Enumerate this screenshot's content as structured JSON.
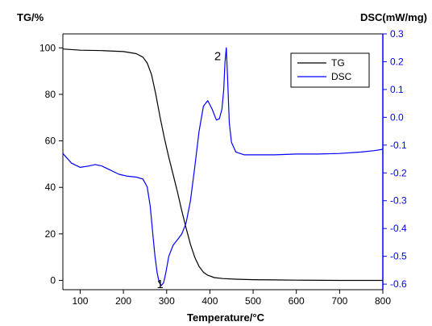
{
  "chart_data": {
    "type": "line",
    "xlabel": "Temperature/°C",
    "ylabel_left": "TG/%",
    "ylabel_right": "DSC(mW/mg)",
    "xlim": [
      60,
      800
    ],
    "ylim_left": [
      -4,
      106
    ],
    "ylim_right": [
      -0.62,
      0.3
    ],
    "x_ticks": [
      100,
      200,
      300,
      400,
      500,
      600,
      700,
      800
    ],
    "y_left_ticks": [
      0,
      20,
      40,
      60,
      80,
      100
    ],
    "y_right_ticks": [
      -0.6,
      -0.5,
      -0.4,
      -0.3,
      -0.2,
      -0.1,
      0.0,
      0.1,
      0.2,
      0.3
    ],
    "y_right_tick_labels": [
      "-0.6",
      "-0.5",
      "-0.4",
      "-0.3",
      "-0.2",
      "-0.1",
      "0.0",
      "0.1",
      "0.2",
      "0.3"
    ],
    "legend": {
      "position": "top-right"
    },
    "annotations": [
      {
        "text": "1",
        "x": 285,
        "axis": "right",
        "y": -0.6
      },
      {
        "text": "2",
        "x": 418,
        "axis": "right",
        "y": 0.22
      }
    ],
    "series": [
      {
        "name": "TG",
        "axis": "left",
        "color": "#000000",
        "x": [
          60,
          100,
          150,
          200,
          230,
          245,
          255,
          265,
          275,
          285,
          295,
          305,
          315,
          325,
          335,
          345,
          355,
          365,
          375,
          385,
          395,
          410,
          430,
          460,
          500,
          550,
          600,
          700,
          800
        ],
        "y": [
          99.5,
          99.0,
          98.8,
          98.4,
          97.5,
          96.0,
          93.5,
          88.5,
          80.0,
          70.0,
          61.0,
          53.0,
          45.5,
          38.0,
          30.0,
          22.5,
          15.5,
          10.0,
          6.0,
          3.5,
          2.2,
          1.2,
          0.8,
          0.5,
          0.3,
          0.2,
          0.1,
          0.0,
          0.0
        ]
      },
      {
        "name": "DSC",
        "axis": "right",
        "color": "#0000ff",
        "x": [
          60,
          80,
          100,
          120,
          135,
          150,
          170,
          190,
          210,
          230,
          245,
          255,
          262,
          268,
          273,
          278,
          283,
          288,
          293,
          298,
          305,
          315,
          325,
          335,
          345,
          355,
          365,
          375,
          385,
          395,
          405,
          415,
          422,
          428,
          432,
          435,
          438,
          441,
          445,
          450,
          460,
          480,
          500,
          550,
          600,
          650,
          700,
          750,
          780,
          800
        ],
        "y": [
          -0.13,
          -0.165,
          -0.18,
          -0.175,
          -0.17,
          -0.175,
          -0.19,
          -0.205,
          -0.212,
          -0.215,
          -0.222,
          -0.25,
          -0.32,
          -0.42,
          -0.5,
          -0.56,
          -0.595,
          -0.605,
          -0.595,
          -0.56,
          -0.5,
          -0.46,
          -0.44,
          -0.42,
          -0.38,
          -0.3,
          -0.18,
          -0.05,
          0.04,
          0.06,
          0.03,
          -0.01,
          -0.005,
          0.03,
          0.1,
          0.2,
          0.25,
          0.14,
          -0.02,
          -0.09,
          -0.125,
          -0.135,
          -0.135,
          -0.135,
          -0.132,
          -0.132,
          -0.13,
          -0.125,
          -0.12,
          -0.115
        ]
      }
    ]
  }
}
